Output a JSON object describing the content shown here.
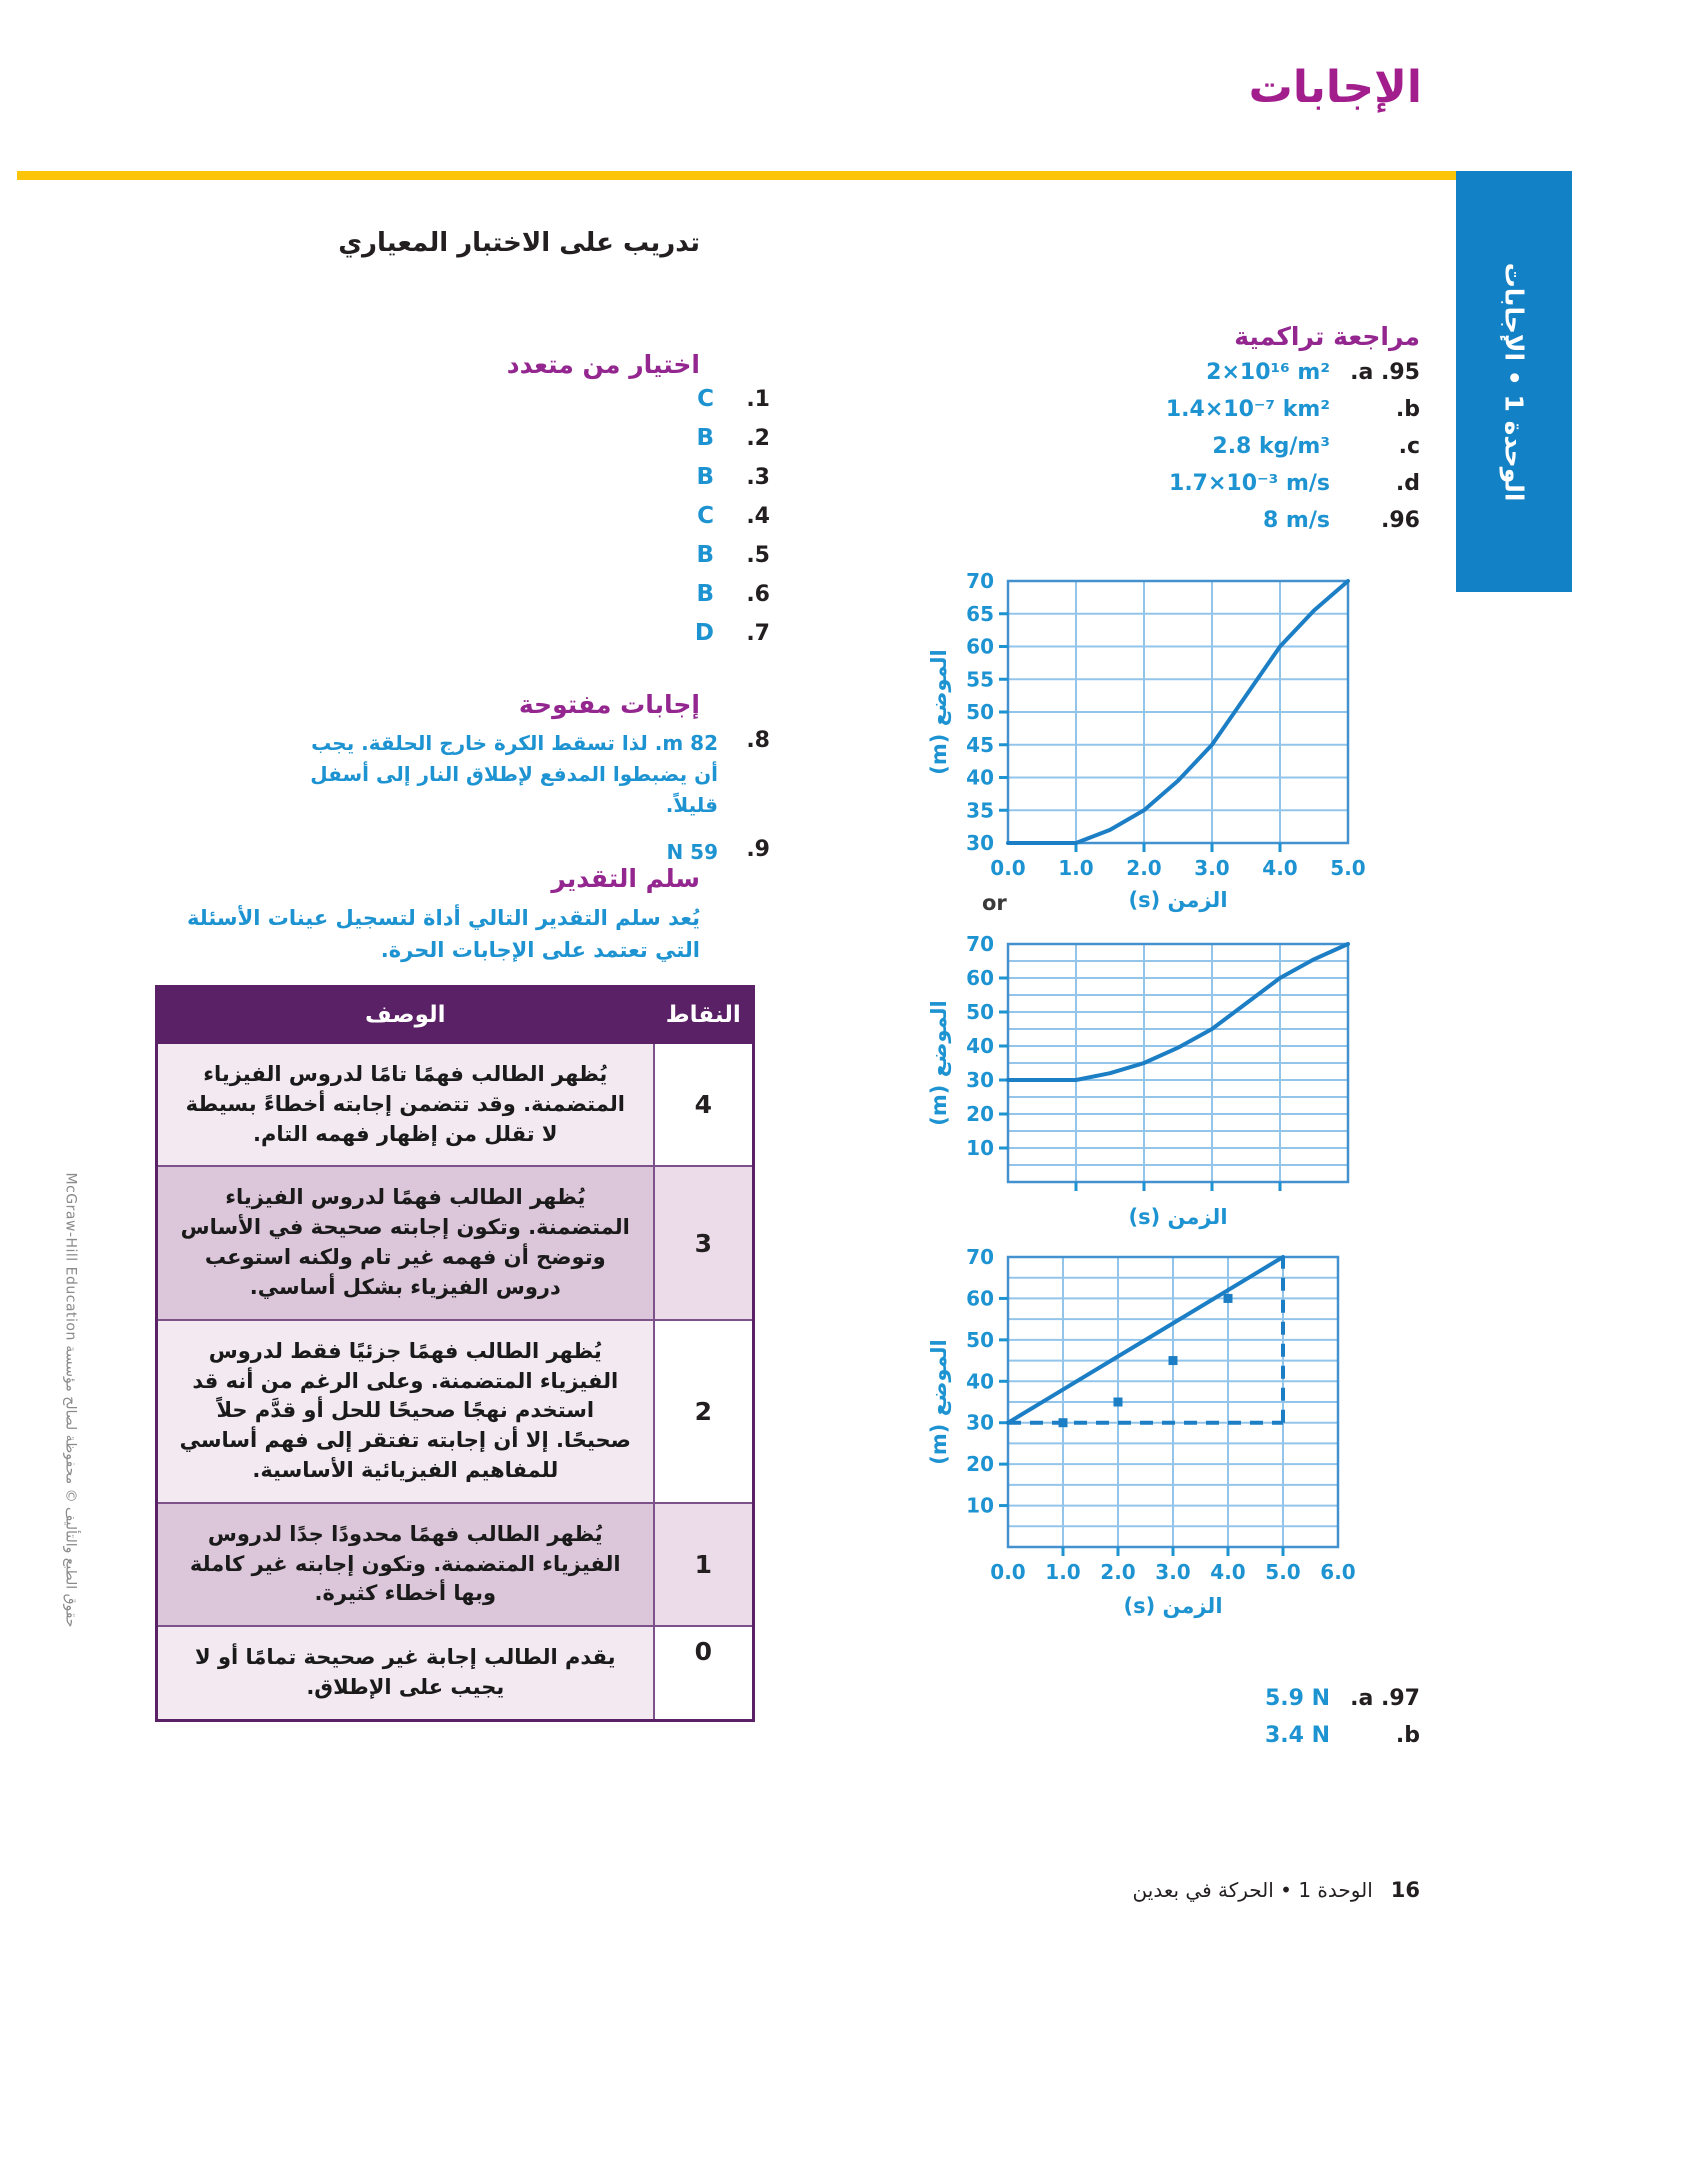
{
  "page": {
    "title": "الإجابات",
    "side_tab": "الوحدة 1 • الإجابات",
    "copyright": "حقوق الطبع والتأليف © محفوظة لصالح مؤسسة McGraw-Hill Education",
    "footer": {
      "page_number": "16",
      "unit": "الوحدة 1 • الحركة في بعدين"
    }
  },
  "left_column": {
    "test_practice_heading": "تدريب على الاختبار المعياري",
    "multiple_choice": {
      "heading": "اختيار من متعدد",
      "items": [
        {
          "number": ".1",
          "answer": "C"
        },
        {
          "number": ".2",
          "answer": "B"
        },
        {
          "number": ".3",
          "answer": "B"
        },
        {
          "number": ".4",
          "answer": "C"
        },
        {
          "number": ".5",
          "answer": "B"
        },
        {
          "number": ".6",
          "answer": "B"
        },
        {
          "number": ".7",
          "answer": "D"
        }
      ]
    },
    "open_response": {
      "heading": "إجابات مفتوحة",
      "items": [
        {
          "number": ".8",
          "answer": "82 m. لذا تسقط الكرة خارج الحلقة. يجب أن يضبطوا المدفع لإطلاق النار إلى أسفل قليلاً."
        },
        {
          "number": ".9",
          "answer": "59 N"
        }
      ]
    },
    "rubric": {
      "heading": "سلم التقدير",
      "intro": "يُعد سلم التقدير التالي أداة لتسجيل عينات الأسئلة التي تعتمد على الإجابات الحرة.",
      "table": {
        "points_header": "النقاط",
        "description_header": "الوصف",
        "rows": [
          {
            "points": "4",
            "description": "يُظهر الطالب فهمًا تامًا لدروس الفيزياء المتضمنة. وقد تتضمن إجابته أخطاءً بسيطة لا تقلل من إظهار فهمه التام."
          },
          {
            "points": "3",
            "description": "يُظهر الطالب فهمًا لدروس الفيزياء المتضمنة. وتكون إجابته صحيحة في الأساس وتوضح أن فهمه غير تام ولكنه استوعب دروس الفيزياء بشكل أساسي."
          },
          {
            "points": "2",
            "description": "يُظهر الطالب فهمًا جزئيًا فقط لدروس الفيزياء المتضمنة. وعلى الرغم من أنه قد استخدم نهجًا صحيحًا للحل أو قدَّم حلاً صحيحًا. إلا أن إجابته تفتقر إلى فهم أساسي للمفاهيم الفيزيائية الأساسية."
          },
          {
            "points": "1",
            "description": "يُظهر الطالب فهمًا محدودًا جدًا لدروس الفيزياء المتضمنة. وتكون إجابته غير كاملة وبها أخطاء كثيرة."
          },
          {
            "points": "0",
            "description": "يقدم الطالب إجابة غير صحيحة تمامًا أو لا يجيب على الإطلاق."
          }
        ]
      }
    }
  },
  "right_column": {
    "cumulative_review": {
      "heading": "مراجعة تراكمية",
      "answers": [
        {
          "label": ".a .95",
          "value": "2×10¹⁶ m²"
        },
        {
          "label": ".b",
          "value": "1.4×10⁻⁷ km²"
        },
        {
          "label": ".c",
          "value": "2.8 kg/m³"
        },
        {
          "label": ".d",
          "value": "1.7×10⁻³ m/s"
        },
        {
          "label": ".96",
          "value": "8 m/s"
        }
      ],
      "or_label": "or"
    },
    "question_97": {
      "answers": [
        {
          "label": ".a .97",
          "value": "5.9 N"
        },
        {
          "label": ".b",
          "value": "3.4 N"
        }
      ]
    }
  },
  "chart_data": [
    {
      "id": "position-time-curve-1",
      "type": "line",
      "xlabel": "الزمن (s)",
      "ylabel": "الموضع (m)",
      "xlim": [
        0,
        5
      ],
      "ylim": [
        30,
        70
      ],
      "x_tick_labels": [
        "0.0",
        "1.0",
        "2.0",
        "3.0",
        "4.0",
        "5.0"
      ],
      "y_tick_values": [
        30,
        35,
        40,
        45,
        50,
        55,
        60,
        65,
        70
      ],
      "y_grid_step": 5,
      "x_grid_values": [
        1,
        2,
        3,
        4,
        5
      ],
      "points": [
        [
          0,
          30
        ],
        [
          1,
          30
        ],
        [
          1.5,
          32
        ],
        [
          2,
          35
        ],
        [
          2.5,
          39.5
        ],
        [
          3,
          45
        ],
        [
          3.5,
          52.5
        ],
        [
          4,
          60
        ],
        [
          4.5,
          65.5
        ],
        [
          5,
          70
        ]
      ]
    },
    {
      "id": "position-time-curve-2",
      "type": "line",
      "xlabel": "الزمن (s)",
      "ylabel": "الموضع (m)",
      "xlim": [
        0,
        5
      ],
      "ylim": [
        0,
        70
      ],
      "x_tick_labels": [],
      "y_tick_values": [
        10,
        20,
        30,
        40,
        50,
        60,
        70
      ],
      "y_grid_step": 5,
      "x_grid_values": [
        1,
        2,
        3,
        4,
        5
      ],
      "points": [
        [
          0,
          30
        ],
        [
          1,
          30
        ],
        [
          1.5,
          32
        ],
        [
          2,
          35
        ],
        [
          2.5,
          39.5
        ],
        [
          3,
          45
        ],
        [
          3.5,
          52.5
        ],
        [
          4,
          60
        ],
        [
          4.5,
          65.5
        ],
        [
          5,
          70
        ]
      ]
    },
    {
      "id": "position-time-line-3",
      "type": "line",
      "xlabel": "الزمن (s)",
      "ylabel": "الموضع (m)",
      "xlim": [
        0,
        6
      ],
      "ylim": [
        0,
        70
      ],
      "x_tick_labels": [
        "0.0",
        "1.0",
        "2.0",
        "3.0",
        "4.0",
        "5.0",
        "6.0"
      ],
      "y_tick_values": [
        10,
        20,
        30,
        40,
        50,
        60,
        70
      ],
      "y_grid_step": 5,
      "x_grid_values": [
        1,
        2,
        3,
        4,
        5,
        6
      ],
      "line": [
        [
          0,
          30
        ],
        [
          5,
          70
        ]
      ],
      "dashed_h": {
        "y": 30,
        "x0": 0,
        "x1": 5
      },
      "dashed_v": {
        "x": 5,
        "y0": 30,
        "y1": 70
      },
      "markers": [
        [
          1,
          30
        ],
        [
          2,
          35
        ],
        [
          3,
          45
        ],
        [
          4,
          60
        ]
      ]
    }
  ],
  "colors": {
    "accent_blue": "#1E93D1",
    "chart_line": "#1C7EC4",
    "chart_grid": "#93C5EB",
    "chart_frame": "#4392CF",
    "purple_heading": "#93278F",
    "title_magenta": "#A21E8C",
    "table_header": "#5A2166",
    "row_light": "#F2E9F1",
    "row_mauve": "#DCC6D9",
    "points_light": "#ECDCE9",
    "tab_blue": "#1381C5",
    "rule_yellow": "#FCC50A"
  }
}
